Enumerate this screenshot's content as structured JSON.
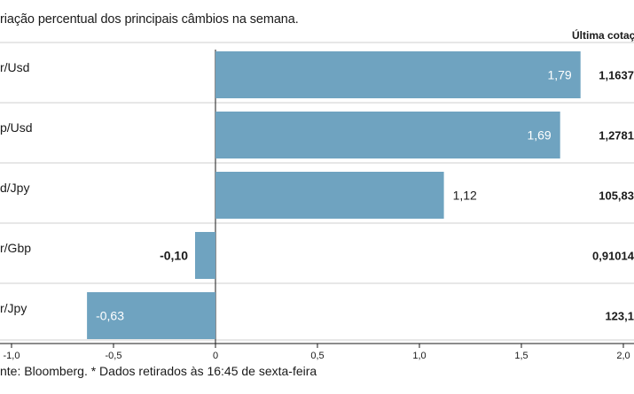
{
  "subtitle": "riação percentual dos principais câmbios na semana.",
  "last_quote_header": "Última cotaç",
  "source_note": "nte: Bloomberg.  * Dados retirados às 16:45 de sexta-feira",
  "colors": {
    "bar": "#6fa3c0",
    "grid": "#cfcfcf",
    "axis": "#1a1a1a"
  },
  "chart_data": {
    "type": "bar",
    "orientation": "horizontal",
    "categories": [
      "r/Usd",
      "p/Usd",
      "d/Jpy",
      "r/Gbp",
      "r/Jpy"
    ],
    "values": [
      1.79,
      1.69,
      1.12,
      -0.1,
      -0.63
    ],
    "value_labels": [
      "1,79",
      "1,69",
      "1,12",
      "-0,10",
      "-0,63"
    ],
    "last_quotes": [
      "1,1637",
      "1,2781",
      "105,83",
      "0,91014",
      "123,1"
    ],
    "xlim": [
      -1.0,
      2.0
    ],
    "xticks": [
      -1.0,
      -0.5,
      0,
      0.5,
      1.0,
      1.5,
      2.0
    ],
    "xtick_labels": [
      "-1,0",
      "-0,5",
      "0",
      "0,5",
      "1,0",
      "1,5",
      "2,0"
    ],
    "grid": true
  }
}
